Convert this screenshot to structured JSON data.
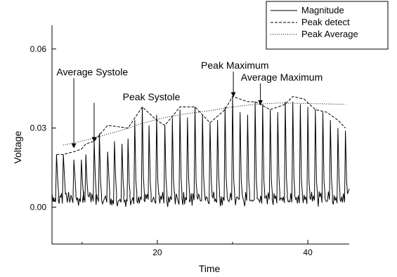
{
  "chart_data": {
    "type": "line",
    "title": "",
    "xlabel": "Time",
    "ylabel": "Voltage",
    "xlim": [
      6,
      45.5
    ],
    "ylim": [
      -0.014,
      0.069
    ],
    "x_ticks": [
      20,
      40
    ],
    "x_minor_ticks": [
      10,
      30
    ],
    "y_ticks": [
      0.0,
      0.03,
      0.06
    ],
    "y_tick_labels": [
      "0.00",
      "0.03",
      "0.06"
    ],
    "legend": {
      "placement": "top-right",
      "entries": [
        {
          "label": "Magnitude",
          "style": "solid"
        },
        {
          "label": "Peak detect",
          "style": "dashed"
        },
        {
          "label": "Peak Average",
          "style": "dotted"
        }
      ]
    },
    "series": [
      {
        "name": "Magnitude",
        "style": "solid",
        "peak_times": [
          6.6,
          7.5,
          8.9,
          9.9,
          10.5,
          11.6,
          12.3,
          13.4,
          14.3,
          15.3,
          16.1,
          17.0,
          18.0,
          18.9,
          19.9,
          21.0,
          22.0,
          23.0,
          24.0,
          25.0,
          26.0,
          27.0,
          28.0,
          29.0,
          30.0,
          31.0,
          32.0,
          33.0,
          34.0,
          35.0,
          36.0,
          37.0,
          38.0,
          39.0,
          40.0,
          41.0,
          42.0,
          43.0,
          44.0,
          45.0
        ],
        "peak_values": [
          0.02,
          0.02,
          0.018,
          0.018,
          0.02,
          0.025,
          0.028,
          0.021,
          0.025,
          0.024,
          0.026,
          0.033,
          0.038,
          0.031,
          0.035,
          0.031,
          0.034,
          0.037,
          0.034,
          0.038,
          0.035,
          0.032,
          0.033,
          0.038,
          0.042,
          0.036,
          0.035,
          0.04,
          0.039,
          0.037,
          0.036,
          0.04,
          0.04,
          0.039,
          0.038,
          0.037,
          0.036,
          0.033,
          0.03,
          0.029
        ],
        "baseline": 0.003,
        "dip": 0.001
      },
      {
        "name": "Peak detect",
        "style": "dashed",
        "x": [
          6.6,
          7.5,
          8.9,
          9.9,
          10.5,
          11.6,
          13.4,
          16.1,
          18.0,
          19.9,
          21.0,
          23.0,
          25.0,
          27.0,
          29.0,
          30.0,
          32.0,
          33.0,
          35.0,
          37.0,
          38.0,
          39.5,
          41.0,
          42.5,
          44.0,
          45.0
        ],
        "y": [
          0.02,
          0.02,
          0.021,
          0.022,
          0.024,
          0.025,
          0.031,
          0.03,
          0.038,
          0.033,
          0.031,
          0.038,
          0.038,
          0.032,
          0.037,
          0.042,
          0.04,
          0.04,
          0.037,
          0.039,
          0.042,
          0.041,
          0.037,
          0.036,
          0.033,
          0.03
        ]
      },
      {
        "name": "Peak Average",
        "style": "dotted",
        "x": [
          7.5,
          9.9,
          12.3,
          15.3,
          18.0,
          21.0,
          24.0,
          27.0,
          30.0,
          33.0,
          36.0,
          39.0,
          42.0,
          45.0
        ],
        "y": [
          0.0235,
          0.025,
          0.0268,
          0.0292,
          0.0318,
          0.034,
          0.0355,
          0.0366,
          0.038,
          0.039,
          0.0395,
          0.0394,
          0.0392,
          0.039
        ]
      }
    ],
    "annotations": [
      {
        "text": "Average Systole",
        "label_x": 6.6,
        "label_y": 0.05,
        "arrow_to": [
          8.9,
          0.0226
        ]
      },
      {
        "text": "Peak Systole",
        "label_x": 15.4,
        "label_y": 0.0406,
        "arrow_to": [
          11.6,
          0.025
        ]
      },
      {
        "text": "Peak Maximum",
        "label_x": 25.8,
        "label_y": 0.0525,
        "arrow_to": [
          30.1,
          0.042
        ]
      },
      {
        "text": "Average Maximum",
        "label_x": 31.1,
        "label_y": 0.048,
        "arrow_to": [
          33.7,
          0.039
        ]
      }
    ]
  }
}
